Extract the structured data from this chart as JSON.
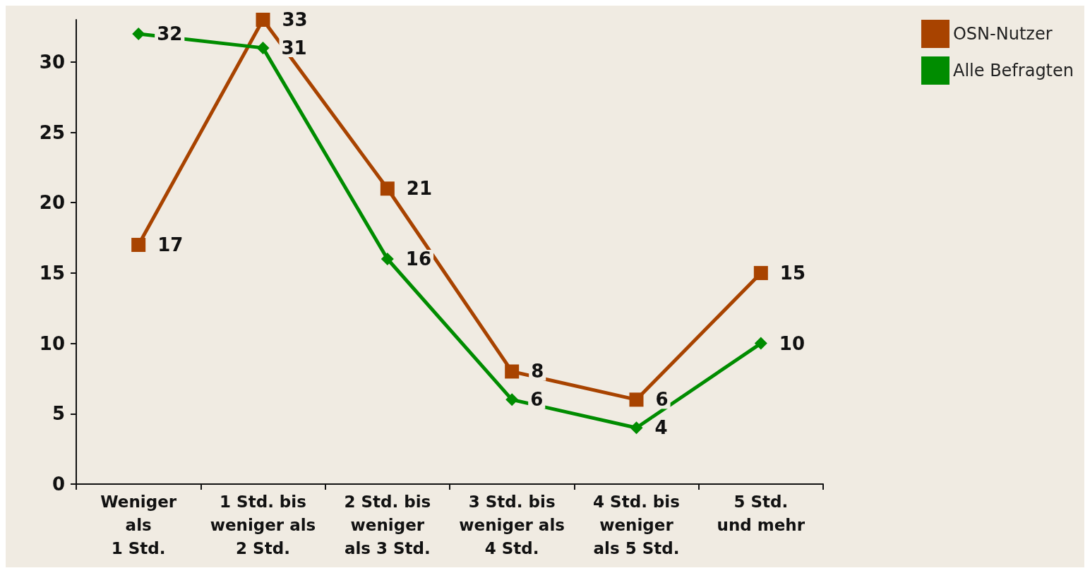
{
  "chart_data": {
    "type": "line",
    "categories": [
      "Weniger\nals\n1 Std.",
      "1 Std. bis\nweniger als\n2 Std.",
      "2 Std. bis\nweniger\nals 3 Std.",
      "3 Std. bis\nweniger als\n4 Std.",
      "4 Std. bis\nweniger\nals 5 Std.",
      "5 Std.\nund mehr"
    ],
    "series": [
      {
        "name": "OSN-Nutzer",
        "color": "#a84300",
        "marker": "square",
        "values": [
          17,
          33,
          21,
          8,
          6,
          15
        ]
      },
      {
        "name": "Alle Befragten",
        "color": "#008c00",
        "marker": "diamond",
        "values": [
          32,
          31,
          16,
          6,
          4,
          10
        ]
      }
    ],
    "ylim": [
      0,
      33
    ],
    "yticks": [
      0,
      5,
      10,
      15,
      20,
      25,
      30
    ],
    "grid": false,
    "legend": "top right",
    "data_labels": true,
    "line_style": "solid"
  }
}
